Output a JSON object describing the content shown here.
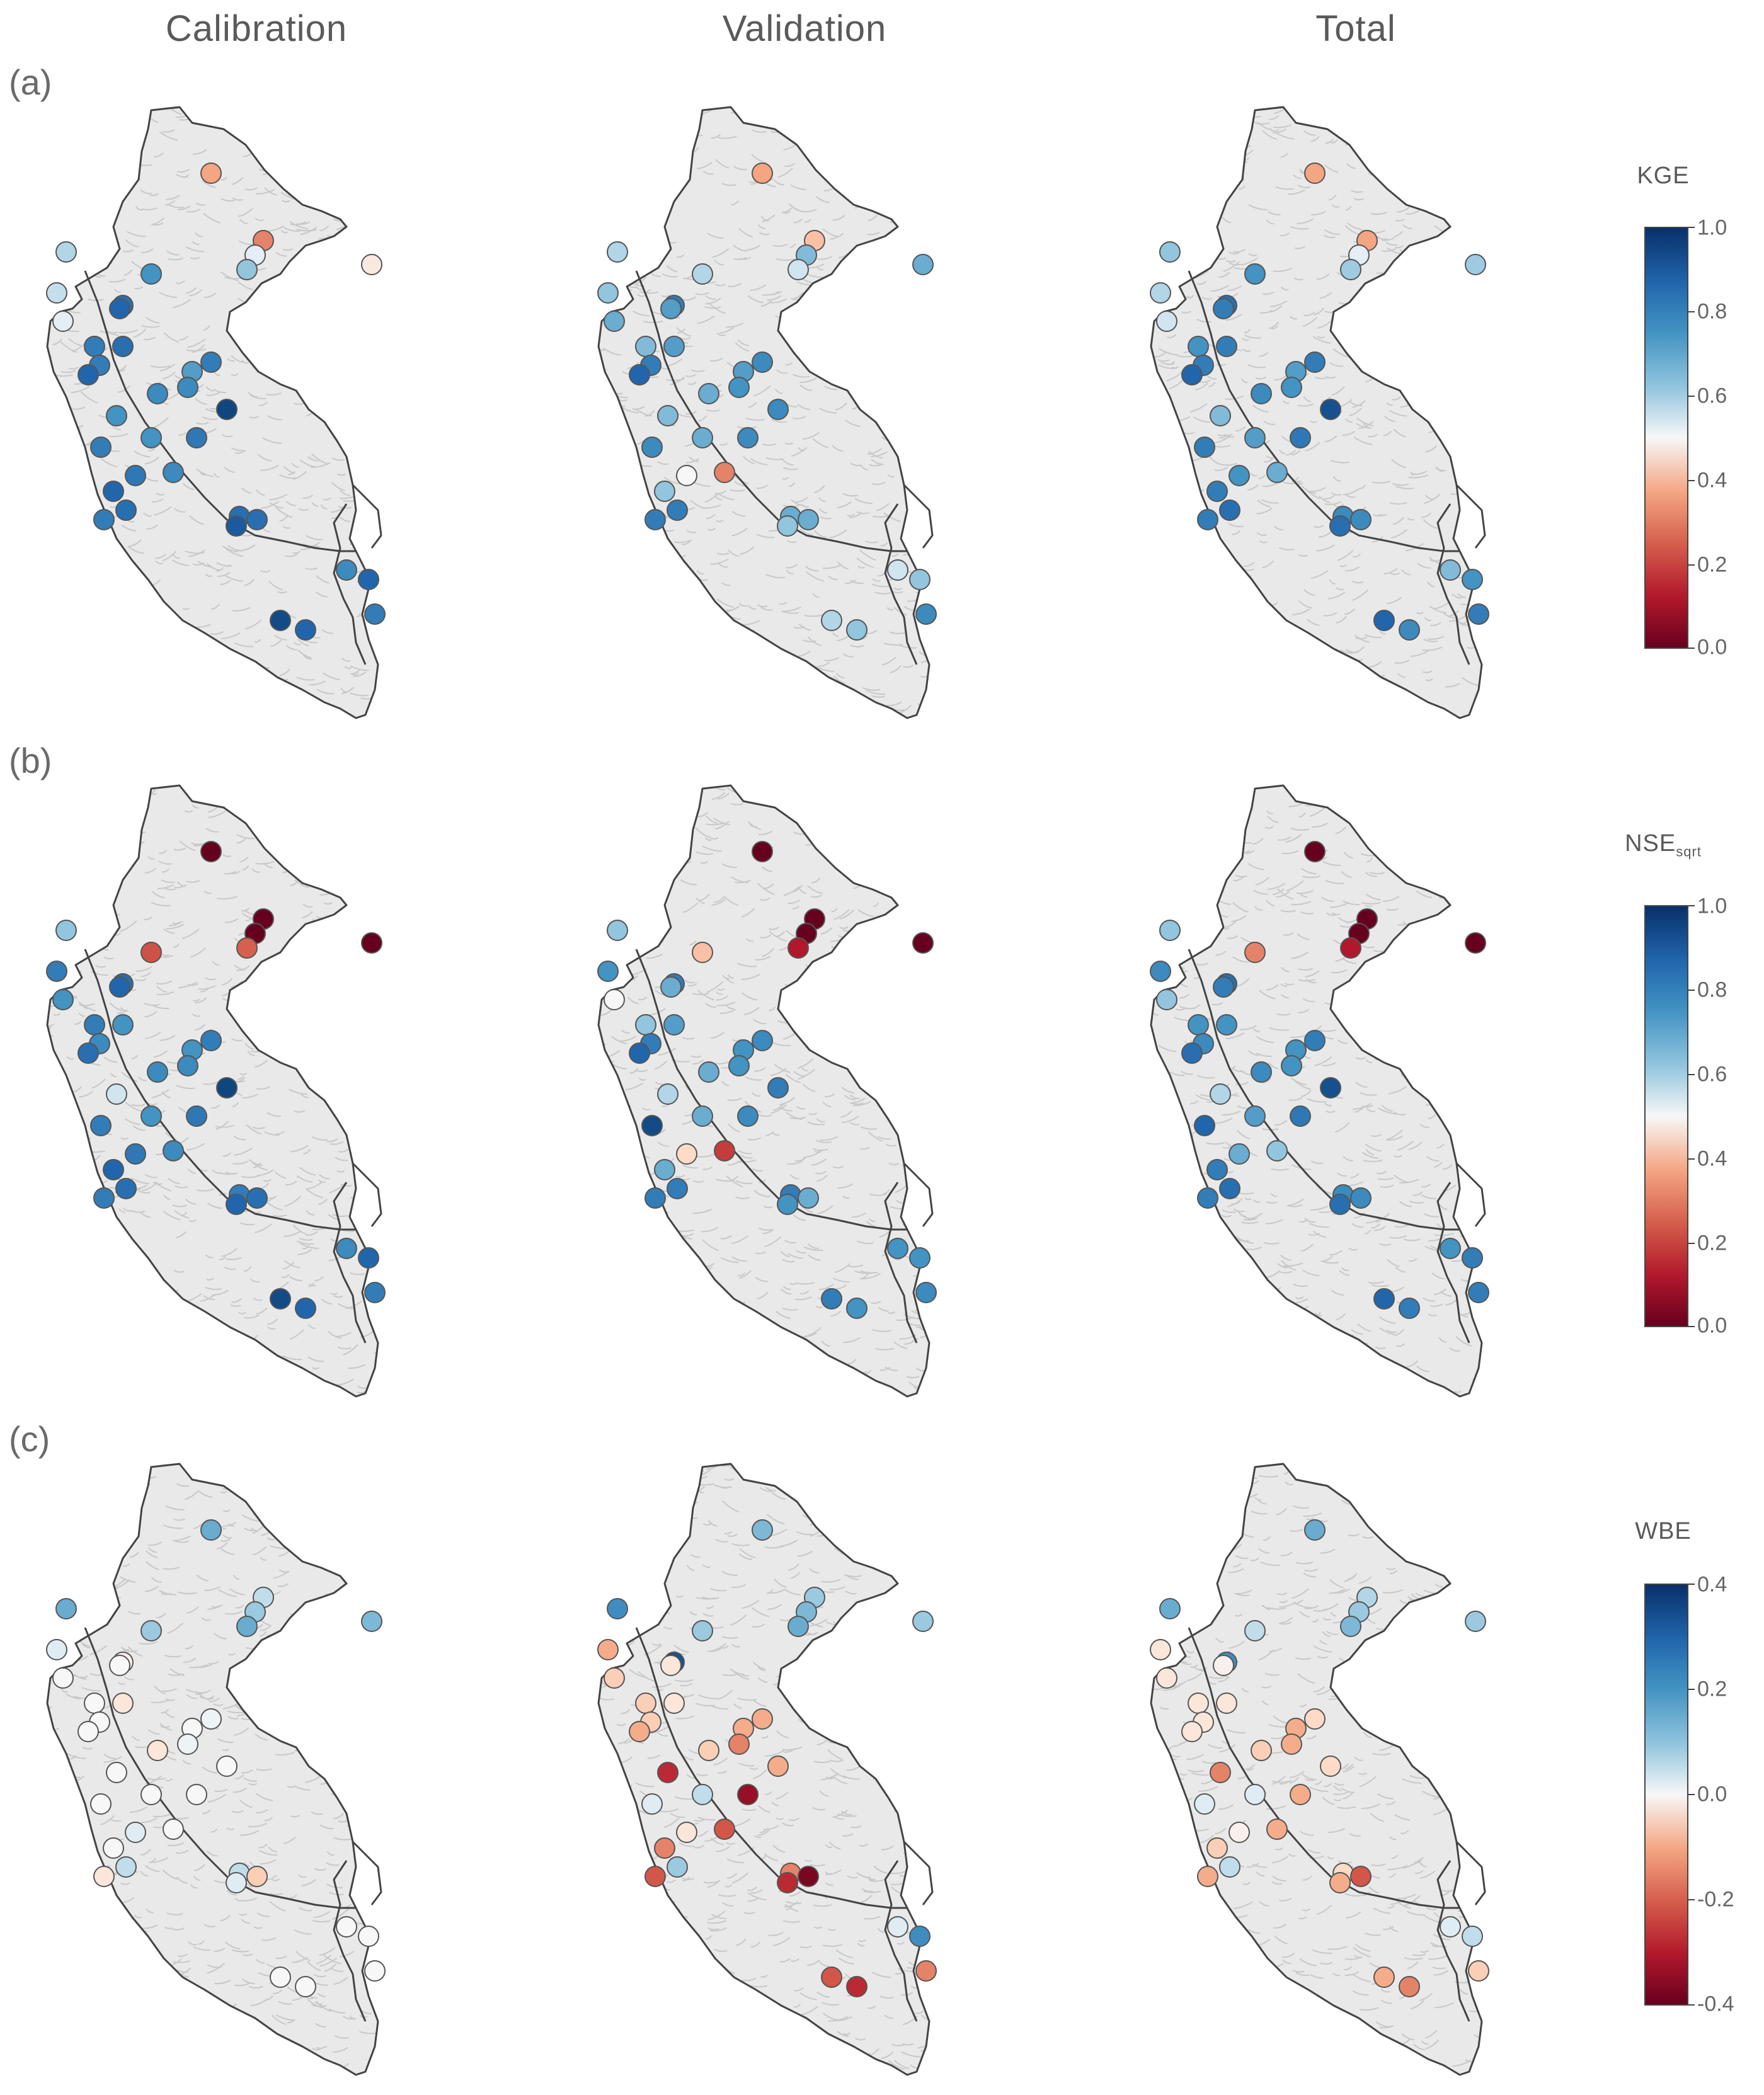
{
  "column_titles": [
    "Calibration",
    "Validation",
    "Total"
  ],
  "row_labels": [
    "(a)",
    "(b)",
    "(c)"
  ],
  "colorbars": [
    {
      "title": "KGE",
      "title_sub": "",
      "ticks": [
        "1.0",
        "0.8",
        "0.6",
        "0.4",
        "0.2",
        "0.0"
      ],
      "range": [
        0.0,
        1.0
      ]
    },
    {
      "title": "NSE",
      "title_sub": "sqrt",
      "ticks": [
        "1.0",
        "0.8",
        "0.6",
        "0.4",
        "0.2",
        "0.0"
      ],
      "range": [
        0.0,
        1.0
      ]
    },
    {
      "title": "WBE",
      "title_sub": "",
      "ticks": [
        "0.4",
        "0.2",
        "0.0",
        "-0.2",
        "-0.4"
      ],
      "range": [
        -0.4,
        0.4
      ]
    }
  ],
  "colors": {
    "scale": [
      "#67001f",
      "#b2182b",
      "#d6604d",
      "#f4a582",
      "#fddbc7",
      "#f7f7f7",
      "#d1e5f0",
      "#92c5de",
      "#4393c3",
      "#2166ac",
      "#053061"
    ],
    "map_fill": "#e9e9e9",
    "map_outline": "#444444",
    "rivers": "#c8c8c8"
  },
  "station_values": {
    "a_calibration": [
      0.3,
      0.25,
      0.55,
      0.45,
      0.7,
      0.8,
      0.65,
      0.62,
      0.55,
      0.88,
      0.9,
      0.85,
      0.88,
      0.85,
      0.9,
      0.78,
      0.85,
      0.82,
      0.82,
      0.96,
      0.8,
      0.85,
      0.8,
      0.86,
      0.82,
      0.86,
      0.9,
      0.88,
      0.85,
      0.88,
      0.92,
      0.88,
      0.9,
      0.85,
      0.95,
      0.9,
      0.82
    ],
    "a_validation": [
      0.3,
      0.35,
      0.72,
      0.75,
      0.6,
      0.65,
      0.65,
      0.7,
      0.75,
      0.85,
      0.78,
      0.72,
      0.78,
      0.85,
      0.9,
      0.78,
      0.82,
      0.75,
      0.8,
      0.82,
      0.72,
      0.82,
      0.75,
      0.82,
      0.25,
      0.5,
      0.7,
      0.85,
      0.85,
      0.75,
      0.7,
      0.75,
      0.7,
      0.82,
      0.65,
      0.7,
      0.6
    ],
    "a_total": [
      0.3,
      0.3,
      0.55,
      0.68,
      0.68,
      0.8,
      0.7,
      0.65,
      0.6,
      0.88,
      0.85,
      0.8,
      0.85,
      0.85,
      0.9,
      0.78,
      0.85,
      0.82,
      0.8,
      0.94,
      0.72,
      0.85,
      0.78,
      0.86,
      0.75,
      0.8,
      0.85,
      0.88,
      0.85,
      0.82,
      0.88,
      0.82,
      0.8,
      0.85,
      0.9,
      0.82,
      0.72
    ],
    "b_calibration": [
      0.0,
      0.0,
      0.0,
      0.0,
      0.2,
      0.18,
      0.7,
      0.85,
      0.8,
      0.88,
      0.9,
      0.85,
      0.8,
      0.82,
      0.88,
      0.8,
      0.85,
      0.82,
      0.82,
      0.96,
      0.6,
      0.85,
      0.8,
      0.86,
      0.82,
      0.86,
      0.9,
      0.88,
      0.85,
      0.85,
      0.9,
      0.88,
      0.9,
      0.85,
      0.95,
      0.9,
      0.82
    ],
    "b_validation": [
      0.0,
      0.0,
      0.0,
      0.0,
      0.1,
      0.35,
      0.7,
      0.8,
      0.5,
      0.85,
      0.75,
      0.7,
      0.78,
      0.85,
      0.9,
      0.8,
      0.82,
      0.75,
      0.8,
      0.85,
      0.65,
      0.95,
      0.75,
      0.82,
      0.15,
      0.4,
      0.75,
      0.85,
      0.85,
      0.85,
      0.8,
      0.75,
      0.8,
      0.82,
      0.85,
      0.8,
      0.8
    ],
    "b_total": [
      0.0,
      0.0,
      0.0,
      0.0,
      0.1,
      0.25,
      0.7,
      0.82,
      0.7,
      0.88,
      0.85,
      0.8,
      0.8,
      0.82,
      0.88,
      0.8,
      0.85,
      0.82,
      0.8,
      0.94,
      0.65,
      0.9,
      0.78,
      0.86,
      0.7,
      0.75,
      0.85,
      0.88,
      0.85,
      0.82,
      0.88,
      0.82,
      0.85,
      0.85,
      0.9,
      0.85,
      0.8
    ],
    "c_calibration": [
      0.2,
      0.1,
      0.15,
      0.18,
      0.2,
      0.15,
      0.2,
      0.05,
      0.0,
      -0.02,
      0.0,
      0.0,
      -0.05,
      0.0,
      0.0,
      0.0,
      0.02,
      -0.05,
      0.02,
      0.0,
      0.0,
      0.0,
      0.0,
      0.0,
      0.0,
      0.05,
      0.0,
      0.1,
      -0.05,
      0.1,
      0.05,
      -0.1,
      0.0,
      0.0,
      0.0,
      0.0,
      0.0
    ],
    "c_validation": [
      0.18,
      0.15,
      0.18,
      0.15,
      0.2,
      0.15,
      0.25,
      -0.15,
      -0.1,
      0.35,
      -0.05,
      -0.1,
      -0.05,
      -0.1,
      -0.15,
      -0.15,
      -0.15,
      -0.1,
      -0.2,
      -0.15,
      -0.3,
      0.05,
      0.1,
      -0.35,
      -0.25,
      -0.05,
      -0.2,
      0.15,
      -0.25,
      -0.2,
      -0.3,
      -0.38,
      0.25,
      -0.2,
      -0.25,
      -0.3,
      0.05
    ],
    "c_total": [
      0.2,
      0.12,
      0.15,
      0.15,
      0.18,
      0.1,
      0.2,
      -0.05,
      -0.05,
      0.25,
      -0.02,
      -0.05,
      -0.05,
      -0.05,
      -0.05,
      -0.15,
      -0.08,
      -0.1,
      -0.15,
      -0.08,
      -0.2,
      0.05,
      0.05,
      -0.15,
      -0.15,
      -0.02,
      -0.1,
      0.1,
      -0.15,
      -0.08,
      -0.15,
      -0.25,
      0.1,
      -0.1,
      -0.15,
      -0.2,
      0.05
    ]
  }
}
